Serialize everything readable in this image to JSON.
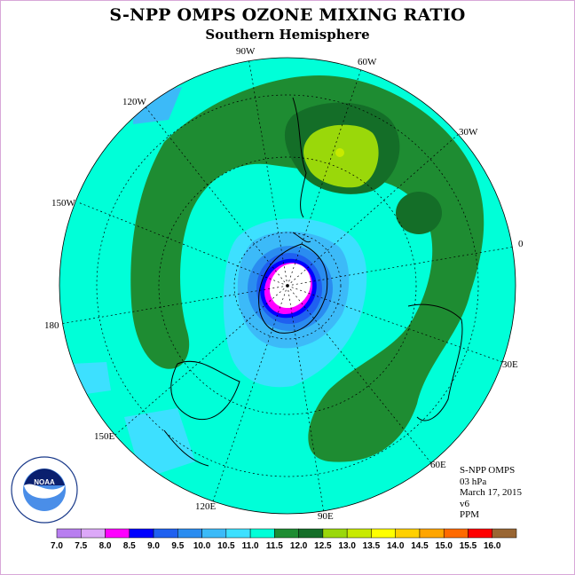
{
  "title": "S-NPP OMPS OZONE MIXING RATIO",
  "subtitle": "Southern Hemisphere",
  "map": {
    "projection": "polar-stereographic-south",
    "longitude_labels": [
      "90W",
      "60W",
      "30W",
      "0",
      "30E",
      "60E",
      "90E",
      "120E",
      "150E",
      "180",
      "150W",
      "120W"
    ],
    "field_levels_ppm": {
      "background": "11.0",
      "mid_latitude_band": "11.5",
      "band_core": "12.0",
      "atlantic_maximum": "12.5",
      "polar_ring_outer": "10.5",
      "polar_minimum": "8.0"
    }
  },
  "info": {
    "instrument": "S-NPP OMPS",
    "level": "03 hPa",
    "date": "March 17, 2015",
    "version": "v6",
    "units": "PPM"
  },
  "logo": {
    "text": "NOAA",
    "ring_text": "NATIONAL OCEANIC AND ATMOSPHERIC ADMINISTRATION"
  },
  "colorbar": {
    "labels": [
      "7.0",
      "7.5",
      "8.0",
      "8.5",
      "9.0",
      "9.5",
      "10.0",
      "10.5",
      "11.0",
      "11.5",
      "12.0",
      "12.5",
      "13.0",
      "13.5",
      "14.0",
      "14.5",
      "15.0",
      "15.5",
      "16.0"
    ],
    "colors": [
      "#b87ef0",
      "#dca8f8",
      "#ff00ff",
      "#0000ff",
      "#1f60f0",
      "#2a8cf0",
      "#3cbaf8",
      "#3de0ff",
      "#00ffd8",
      "#1e8c32",
      "#146e28",
      "#9ad80a",
      "#c8ea00",
      "#ffff00",
      "#ffd000",
      "#ffa500",
      "#ff6a00",
      "#ff0000",
      "#996633"
    ]
  }
}
